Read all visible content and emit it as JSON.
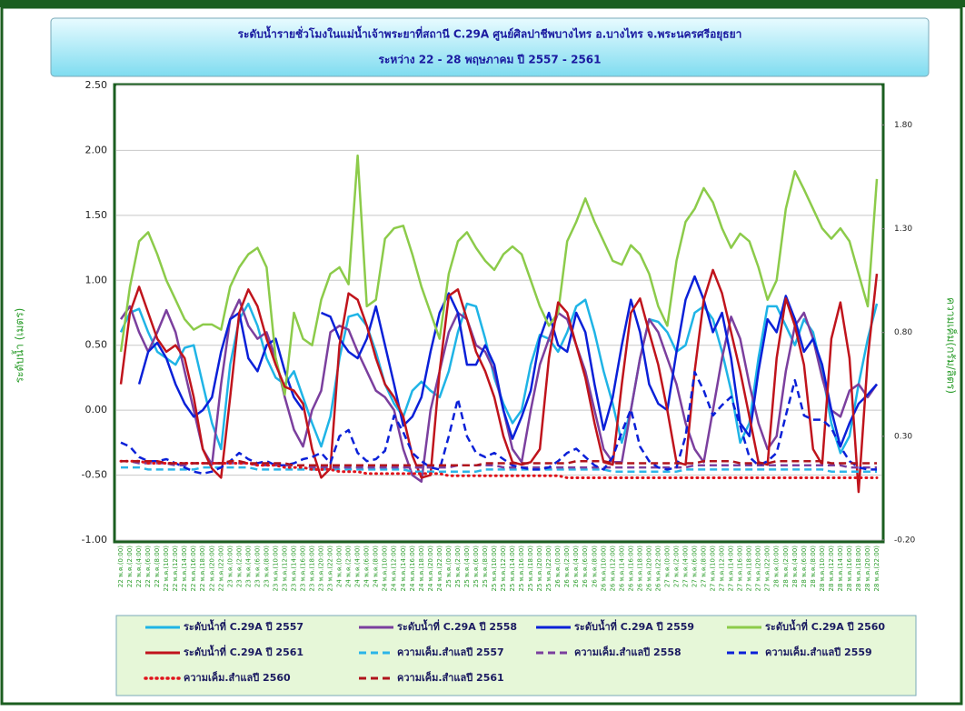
{
  "chart_data": {
    "type": "line",
    "title": "ระดับน้ำรายชั่วโมงในแม่น้ำเจ้าพระยาที่สถานี C.29A ศูนย์ศิลปาชีพบางไทร อ.บางไทร จ.พระนครศรีอยุธยา",
    "subtitle": "ระหว่าง 22 - 28 พฤษภาคม ปี 2557 - 2561",
    "y_label": "ระดับน้ำ (เมตร)",
    "y2_label": "ความเค็ม(กรัม/ลิตร)",
    "grid": true,
    "categories": [
      "22 พ.ค.(0:00)",
      "22 พ.ค.(2:00)",
      "22 พ.ค.(4:00)",
      "22 พ.ค.(6:00)",
      "22 พ.ค.(8:00)",
      "22 พ.ค.(10:00)",
      "22 พ.ค.(12:00)",
      "22 พ.ค.(14:00)",
      "22 พ.ค.(16:00)",
      "22 พ.ค.(18:00)",
      "22 พ.ค.(20:00)",
      "22 พ.ค.(22:00)",
      "23 พ.ค.(0:00)",
      "23 พ.ค.(2:00)",
      "23 พ.ค.(4:00)",
      "23 พ.ค.(6:00)",
      "23 พ.ค.(8:00)",
      "23 พ.ค.(10:00)",
      "23 พ.ค.(12:00)",
      "23 พ.ค.(14:00)",
      "23 พ.ค.(16:00)",
      "23 พ.ค.(18:00)",
      "23 พ.ค.(20:00)",
      "23 พ.ค.(22:00)",
      "24 พ.ค.(0:00)",
      "24 พ.ค.(2:00)",
      "24 พ.ค.(4:00)",
      "24 พ.ค.(6:00)",
      "24 พ.ค.(8:00)",
      "24 พ.ค.(10:00)",
      "24 พ.ค.(12:00)",
      "24 พ.ค.(14:00)",
      "24 พ.ค.(16:00)",
      "24 พ.ค.(18:00)",
      "24 พ.ค.(20:00)",
      "24 พ.ค.(22:00)",
      "25 พ.ค.(0:00)",
      "25 พ.ค.(2:00)",
      "25 พ.ค.(4:00)",
      "25 พ.ค.(6:00)",
      "25 พ.ค.(8:00)",
      "25 พ.ค.(10:00)",
      "25 พ.ค.(12:00)",
      "25 พ.ค.(14:00)",
      "25 พ.ค.(16:00)",
      "25 พ.ค.(18:00)",
      "25 พ.ค.(20:00)",
      "25 พ.ค.(22:00)",
      "26 พ.ค.(0:00)",
      "26 พ.ค.(2:00)",
      "26 พ.ค.(4:00)",
      "26 พ.ค.(6:00)",
      "26 พ.ค.(8:00)",
      "26 พ.ค.(10:00)",
      "26 พ.ค.(12:00)",
      "26 พ.ค.(14:00)",
      "26 พ.ค.(16:00)",
      "26 พ.ค.(18:00)",
      "26 พ.ค.(20:00)",
      "26 พ.ค.(22:00)",
      "27 พ.ค.(0:00)",
      "27 พ.ค.(2:00)",
      "27 พ.ค.(4:00)",
      "27 พ.ค.(6:00)",
      "27 พ.ค.(8:00)",
      "27 พ.ค.(10:00)",
      "27 พ.ค.(12:00)",
      "27 พ.ค.(14:00)",
      "27 พ.ค.(16:00)",
      "27 พ.ค.(18:00)",
      "27 พ.ค.(20:00)",
      "27 พ.ค.(22:00)",
      "28 พ.ค.(0:00)",
      "28 พ.ค.(2:00)",
      "28 พ.ค.(4:00)",
      "28 พ.ค.(6:00)",
      "28 พ.ค.(8:00)",
      "28 พ.ค.(10:00)",
      "28 พ.ค.(12:00)",
      "28 พ.ค.(14:00)",
      "28 พ.ค.(16:00)",
      "28 พ.ค.(18:00)",
      "28 พ.ค.(20:00)",
      "28 พ.ค.(22:00)"
    ],
    "ylim": [
      -1,
      2.5
    ],
    "yticks": [
      {
        "value": -1,
        "label": "-1.00"
      },
      {
        "value": -0.5,
        "label": "-0.50"
      },
      {
        "value": 0,
        "label": "0.00"
      },
      {
        "value": 0.5,
        "label": "0.50"
      },
      {
        "value": 1,
        "label": "1.00"
      },
      {
        "value": 1.5,
        "label": "1.50"
      },
      {
        "value": 2,
        "label": "2.00"
      },
      {
        "value": 2.5,
        "label": "2.50"
      }
    ],
    "y2lim": [
      -0.2,
      1.99
    ],
    "y2ticks": [
      {
        "value": -0.2,
        "label": "-0.20"
      },
      {
        "value": 0.3,
        "label": "0.30"
      },
      {
        "value": 0.8,
        "label": "0.80"
      },
      {
        "value": 1.3,
        "label": "1.30"
      },
      {
        "value": 1.8,
        "label": "1.80"
      }
    ],
    "series": [
      {
        "name": "ระดับน้ำที่ C.29A ปี 2557",
        "color": "#1fb4e6",
        "line_style": "solid",
        "values": [
          0.6,
          0.75,
          0.78,
          0.6,
          0.45,
          0.4,
          0.35,
          0.48,
          0.5,
          0.2,
          -0.1,
          -0.3,
          0.35,
          0.7,
          0.82,
          0.65,
          0.4,
          0.25,
          0.2,
          0.3,
          0.1,
          -0.1,
          -0.28,
          -0.05,
          0.4,
          0.72,
          0.74,
          0.65,
          0.45,
          0.2,
          0.05,
          -0.05,
          0.15,
          0.22,
          0.15,
          0.1,
          0.3,
          0.6,
          0.82,
          0.8,
          0.55,
          0.25,
          0.05,
          -0.1,
          0.0,
          0.35,
          0.58,
          0.55,
          0.45,
          0.6,
          0.8,
          0.85,
          0.6,
          0.3,
          0.05,
          -0.25,
          0.0,
          0.4,
          0.7,
          0.68,
          0.6,
          0.45,
          0.5,
          0.75,
          0.8,
          0.7,
          0.45,
          0.15,
          -0.25,
          -0.1,
          0.4,
          0.8,
          0.8,
          0.65,
          0.5,
          0.7,
          0.6,
          0.3,
          -0.1,
          -0.33,
          -0.2,
          0.2,
          0.55,
          0.82
        ]
      },
      {
        "name": "ระดับน้ำที่ C.29A ปี 2558",
        "color": "#7b3f9e",
        "line_style": "solid",
        "values": [
          0.7,
          0.8,
          0.6,
          0.45,
          0.6,
          0.77,
          0.6,
          0.3,
          0.0,
          -0.3,
          -0.42,
          0.2,
          0.7,
          0.85,
          0.65,
          0.55,
          0.6,
          0.4,
          0.1,
          -0.15,
          -0.28,
          0.0,
          0.15,
          0.6,
          0.65,
          0.62,
          0.45,
          0.3,
          0.15,
          0.1,
          0.0,
          -0.3,
          -0.5,
          -0.55,
          0.0,
          0.3,
          0.6,
          0.75,
          0.7,
          0.5,
          0.45,
          0.3,
          0.0,
          -0.3,
          -0.4,
          0.0,
          0.35,
          0.55,
          0.75,
          0.7,
          0.5,
          0.3,
          0.0,
          -0.3,
          -0.4,
          -0.4,
          0.0,
          0.4,
          0.7,
          0.6,
          0.4,
          0.2,
          -0.1,
          -0.3,
          -0.4,
          0.0,
          0.4,
          0.72,
          0.55,
          0.2,
          -0.1,
          -0.3,
          -0.2,
          0.3,
          0.65,
          0.75,
          0.55,
          0.25,
          0.0,
          -0.05,
          0.15,
          0.2,
          0.1,
          0.2
        ]
      },
      {
        "name": "ระดับน้ำที่ C.29A ปี 2559",
        "color": "#0a20d8",
        "line_style": "solid",
        "values": [
          null,
          null,
          0.2,
          0.45,
          0.52,
          0.4,
          0.2,
          0.05,
          -0.05,
          0.0,
          0.1,
          0.45,
          0.7,
          0.75,
          0.4,
          0.3,
          0.5,
          0.55,
          0.3,
          0.1,
          0.0,
          null,
          0.75,
          0.72,
          0.55,
          0.45,
          0.4,
          0.55,
          0.8,
          0.5,
          0.2,
          -0.12,
          -0.05,
          0.1,
          0.45,
          0.75,
          0.9,
          0.75,
          0.35,
          0.35,
          0.5,
          0.35,
          0.0,
          -0.22,
          -0.05,
          0.15,
          0.55,
          0.75,
          0.5,
          0.45,
          0.75,
          0.6,
          0.2,
          -0.15,
          0.1,
          0.5,
          0.85,
          0.6,
          0.2,
          0.05,
          0.0,
          0.45,
          0.85,
          1.03,
          0.85,
          0.6,
          0.75,
          0.4,
          -0.1,
          -0.2,
          0.3,
          0.7,
          0.6,
          0.88,
          0.7,
          0.45,
          0.55,
          0.35,
          0.0,
          -0.28,
          -0.1,
          0.05,
          0.12,
          0.2
        ]
      },
      {
        "name": "ระดับน้ำที่ C.29A ปี 2560",
        "color": "#8ccb4a",
        "line_style": "solid",
        "values": [
          0.45,
          0.95,
          1.3,
          1.37,
          1.2,
          1.0,
          0.85,
          0.7,
          0.62,
          0.66,
          0.66,
          0.62,
          0.95,
          1.1,
          1.2,
          1.25,
          1.1,
          0.4,
          0.12,
          0.75,
          0.55,
          0.5,
          0.85,
          1.05,
          1.1,
          0.97,
          1.96,
          0.8,
          0.85,
          1.32,
          1.4,
          1.42,
          1.2,
          0.95,
          0.75,
          0.55,
          1.05,
          1.3,
          1.37,
          1.25,
          1.15,
          1.08,
          1.2,
          1.26,
          1.2,
          1.0,
          0.8,
          0.65,
          0.75,
          1.3,
          1.45,
          1.63,
          1.45,
          1.3,
          1.15,
          1.12,
          1.27,
          1.2,
          1.05,
          0.8,
          0.65,
          1.15,
          1.45,
          1.55,
          1.71,
          1.6,
          1.4,
          1.25,
          1.36,
          1.3,
          1.1,
          0.85,
          1.0,
          1.55,
          1.84,
          1.7,
          1.55,
          1.4,
          1.32,
          1.4,
          1.3,
          1.05,
          0.8,
          1.78
        ]
      },
      {
        "name": "ระดับน้ำที่ C.29A ปี 2561",
        "color": "#c0141c",
        "line_style": "solid",
        "values": [
          0.2,
          0.75,
          0.95,
          0.75,
          0.55,
          0.45,
          0.5,
          0.4,
          0.1,
          -0.3,
          -0.45,
          -0.52,
          0.1,
          0.75,
          0.93,
          0.8,
          0.55,
          0.35,
          0.18,
          0.15,
          0.05,
          -0.3,
          -0.52,
          -0.45,
          0.5,
          0.9,
          0.85,
          0.65,
          0.4,
          0.2,
          0.1,
          -0.05,
          -0.35,
          -0.52,
          -0.5,
          0.3,
          0.88,
          0.93,
          0.7,
          0.45,
          0.3,
          0.1,
          -0.2,
          -0.4,
          -0.42,
          -0.4,
          -0.3,
          0.4,
          0.83,
          0.75,
          0.5,
          0.25,
          -0.1,
          -0.4,
          -0.42,
          0.2,
          0.75,
          0.86,
          0.6,
          0.35,
          0.0,
          -0.4,
          -0.42,
          0.3,
          0.85,
          1.08,
          0.9,
          0.6,
          0.3,
          -0.05,
          -0.4,
          -0.42,
          0.4,
          0.86,
          0.65,
          0.35,
          -0.3,
          -0.42,
          0.55,
          0.83,
          0.4,
          -0.63,
          0.4,
          1.05
        ]
      },
      {
        "name": "ความเค็ม.สำแลปี 2557",
        "color": "#2bb5e8",
        "line_style": "dashed",
        "axis": "y2",
        "values": [
          0.15,
          0.15,
          0.15,
          0.14,
          0.14,
          0.14,
          0.14,
          0.14,
          0.14,
          0.15,
          0.15,
          0.15,
          0.15,
          0.15,
          0.15,
          0.14,
          0.14,
          0.14,
          0.14,
          0.14,
          0.14,
          0.14,
          0.14,
          0.14,
          0.14,
          0.14,
          0.14,
          0.14,
          0.14,
          0.14,
          0.14,
          0.14,
          0.13,
          0.13,
          0.13,
          0.13,
          0.13,
          0.13,
          0.13,
          0.13,
          0.14,
          0.14,
          0.14,
          0.14,
          0.14,
          0.14,
          0.14,
          0.14,
          0.14,
          0.14,
          0.14,
          0.14,
          0.14,
          0.14,
          0.13,
          0.13,
          0.13,
          0.13,
          0.13,
          0.13,
          0.13,
          0.13,
          0.14,
          0.14,
          0.14,
          0.14,
          0.14,
          0.14,
          0.14,
          0.14,
          0.14,
          0.14,
          0.14,
          0.14,
          0.14,
          0.14,
          0.14,
          0.14,
          0.13,
          0.13,
          0.13,
          0.13,
          0.13,
          0.13
        ]
      },
      {
        "name": "ความเค็ม.สำแลปี 2558",
        "color": "#7b3f9e",
        "line_style": "dashed",
        "axis": "y2",
        "values": [
          0.18,
          0.18,
          0.17,
          0.17,
          0.17,
          0.17,
          0.16,
          0.16,
          0.17,
          0.17,
          0.17,
          0.17,
          0.17,
          0.17,
          0.17,
          0.16,
          0.16,
          0.16,
          0.16,
          0.16,
          0.16,
          0.15,
          0.15,
          0.15,
          0.15,
          0.15,
          0.15,
          0.15,
          0.15,
          0.15,
          0.15,
          0.15,
          0.15,
          0.15,
          0.15,
          0.15,
          0.15,
          0.16,
          0.16,
          0.16,
          0.16,
          0.16,
          0.15,
          0.15,
          0.15,
          0.15,
          0.15,
          0.15,
          0.15,
          0.15,
          0.15,
          0.15,
          0.15,
          0.15,
          0.15,
          0.15,
          0.15,
          0.15,
          0.15,
          0.15,
          0.15,
          0.15,
          0.15,
          0.16,
          0.16,
          0.16,
          0.16,
          0.16,
          0.16,
          0.16,
          0.16,
          0.16,
          0.16,
          0.16,
          0.16,
          0.16,
          0.16,
          0.16,
          0.16,
          0.16,
          0.15,
          0.15,
          0.15,
          0.15
        ]
      },
      {
        "name": "ความเค็ม.สำแลปี 2559",
        "color": "#0a20d8",
        "line_style": "dashed",
        "axis": "y2",
        "values": [
          0.27,
          0.25,
          0.2,
          0.18,
          0.18,
          0.19,
          0.17,
          0.15,
          0.13,
          0.12,
          0.13,
          0.15,
          0.18,
          0.22,
          0.19,
          0.17,
          0.18,
          0.16,
          0.16,
          0.17,
          0.19,
          0.2,
          0.22,
          0.17,
          0.3,
          0.33,
          0.22,
          0.18,
          0.19,
          0.23,
          0.4,
          0.32,
          0.22,
          0.18,
          0.15,
          0.14,
          0.3,
          0.48,
          0.3,
          0.22,
          0.2,
          0.22,
          0.19,
          0.16,
          0.15,
          0.14,
          0.14,
          0.15,
          0.18,
          0.22,
          0.24,
          0.2,
          0.16,
          0.14,
          0.2,
          0.32,
          0.43,
          0.25,
          0.18,
          0.15,
          0.14,
          0.15,
          0.3,
          0.61,
          0.52,
          0.4,
          0.45,
          0.49,
          0.35,
          0.2,
          0.16,
          0.18,
          0.22,
          0.4,
          0.57,
          0.4,
          0.38,
          0.38,
          0.34,
          0.25,
          0.18,
          0.15,
          0.14,
          0.14
        ]
      },
      {
        "name": "ความเค็ม.สำแลปี 2560",
        "color": "#e0141c",
        "line_style": "dotted",
        "axis": "y2",
        "values": [
          0.18,
          0.18,
          0.18,
          0.17,
          0.17,
          0.17,
          0.17,
          0.17,
          0.17,
          0.17,
          0.17,
          0.17,
          0.17,
          0.17,
          0.17,
          0.16,
          0.16,
          0.16,
          0.15,
          0.15,
          0.15,
          0.14,
          0.14,
          0.14,
          0.13,
          0.13,
          0.13,
          0.12,
          0.12,
          0.12,
          0.12,
          0.12,
          0.12,
          0.12,
          0.12,
          0.12,
          0.11,
          0.11,
          0.11,
          0.11,
          0.11,
          0.11,
          0.11,
          0.11,
          0.11,
          0.11,
          0.11,
          0.11,
          0.11,
          0.1,
          0.1,
          0.1,
          0.1,
          0.1,
          0.1,
          0.1,
          0.1,
          0.1,
          0.1,
          0.1,
          0.1,
          0.1,
          0.1,
          0.1,
          0.1,
          0.1,
          0.1,
          0.1,
          0.1,
          0.1,
          0.1,
          0.1,
          0.1,
          0.1,
          0.1,
          0.1,
          0.1,
          0.1,
          0.1,
          0.1,
          0.1,
          0.1,
          0.1,
          0.1
        ]
      },
      {
        "name": "ความเค็ม.สำแลปี 2561",
        "color": "#b0141c",
        "line_style": "dashed",
        "axis": "y2",
        "values": [
          0.18,
          0.18,
          0.18,
          0.18,
          0.18,
          0.17,
          0.17,
          0.17,
          0.17,
          0.17,
          0.17,
          0.17,
          0.18,
          0.18,
          0.17,
          0.17,
          0.17,
          0.17,
          0.17,
          0.16,
          0.16,
          0.16,
          0.16,
          0.16,
          0.16,
          0.16,
          0.16,
          0.16,
          0.16,
          0.16,
          0.16,
          0.16,
          0.16,
          0.16,
          0.16,
          0.16,
          0.16,
          0.16,
          0.16,
          0.16,
          0.17,
          0.17,
          0.17,
          0.17,
          0.17,
          0.17,
          0.17,
          0.17,
          0.17,
          0.17,
          0.18,
          0.18,
          0.18,
          0.18,
          0.17,
          0.17,
          0.17,
          0.17,
          0.17,
          0.17,
          0.17,
          0.17,
          0.17,
          0.17,
          0.18,
          0.18,
          0.18,
          0.18,
          0.17,
          0.17,
          0.17,
          0.17,
          0.18,
          0.18,
          0.18,
          0.18,
          0.18,
          0.18,
          0.17,
          0.17,
          0.17,
          0.17,
          0.17,
          0.17
        ]
      }
    ]
  }
}
